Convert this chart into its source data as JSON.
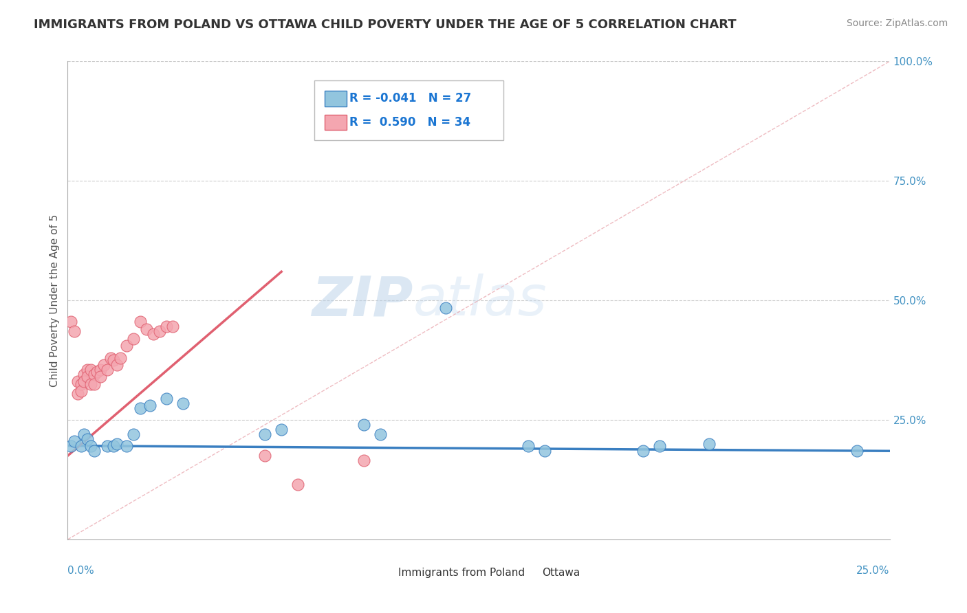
{
  "title": "IMMIGRANTS FROM POLAND VS OTTAWA CHILD POVERTY UNDER THE AGE OF 5 CORRELATION CHART",
  "source": "Source: ZipAtlas.com",
  "ylabel": "Child Poverty Under the Age of 5",
  "xlim": [
    0,
    0.25
  ],
  "ylim": [
    0,
    1.0
  ],
  "legend1_R": "-0.041",
  "legend1_N": "27",
  "legend2_R": "0.590",
  "legend2_N": "34",
  "watermark_zip": "ZIP",
  "watermark_atlas": "atlas",
  "blue_color": "#92C5DE",
  "pink_color": "#F4A6B0",
  "blue_line_color": "#3a7fc1",
  "pink_line_color": "#E06070",
  "blue_scatter": [
    [
      0.001,
      0.195
    ],
    [
      0.002,
      0.205
    ],
    [
      0.004,
      0.195
    ],
    [
      0.005,
      0.22
    ],
    [
      0.006,
      0.21
    ],
    [
      0.007,
      0.195
    ],
    [
      0.008,
      0.185
    ],
    [
      0.012,
      0.195
    ],
    [
      0.014,
      0.195
    ],
    [
      0.015,
      0.2
    ],
    [
      0.018,
      0.195
    ],
    [
      0.02,
      0.22
    ],
    [
      0.022,
      0.275
    ],
    [
      0.025,
      0.28
    ],
    [
      0.03,
      0.295
    ],
    [
      0.035,
      0.285
    ],
    [
      0.06,
      0.22
    ],
    [
      0.065,
      0.23
    ],
    [
      0.09,
      0.24
    ],
    [
      0.095,
      0.22
    ],
    [
      0.115,
      0.485
    ],
    [
      0.14,
      0.195
    ],
    [
      0.145,
      0.185
    ],
    [
      0.175,
      0.185
    ],
    [
      0.18,
      0.195
    ],
    [
      0.195,
      0.2
    ],
    [
      0.24,
      0.185
    ]
  ],
  "pink_scatter": [
    [
      0.001,
      0.455
    ],
    [
      0.002,
      0.435
    ],
    [
      0.003,
      0.33
    ],
    [
      0.003,
      0.305
    ],
    [
      0.004,
      0.325
    ],
    [
      0.004,
      0.31
    ],
    [
      0.005,
      0.345
    ],
    [
      0.005,
      0.33
    ],
    [
      0.006,
      0.355
    ],
    [
      0.006,
      0.34
    ],
    [
      0.007,
      0.355
    ],
    [
      0.007,
      0.325
    ],
    [
      0.008,
      0.345
    ],
    [
      0.008,
      0.325
    ],
    [
      0.009,
      0.35
    ],
    [
      0.01,
      0.355
    ],
    [
      0.01,
      0.34
    ],
    [
      0.011,
      0.365
    ],
    [
      0.012,
      0.355
    ],
    [
      0.013,
      0.38
    ],
    [
      0.014,
      0.375
    ],
    [
      0.015,
      0.365
    ],
    [
      0.016,
      0.38
    ],
    [
      0.018,
      0.405
    ],
    [
      0.02,
      0.42
    ],
    [
      0.022,
      0.455
    ],
    [
      0.024,
      0.44
    ],
    [
      0.026,
      0.43
    ],
    [
      0.028,
      0.435
    ],
    [
      0.03,
      0.445
    ],
    [
      0.032,
      0.445
    ],
    [
      0.06,
      0.175
    ],
    [
      0.07,
      0.115
    ],
    [
      0.09,
      0.165
    ]
  ],
  "grid_color": "#CCCCCC",
  "background_color": "#FFFFFF",
  "title_color": "#333333",
  "axis_label_color": "#4393C3",
  "ref_line_color": "#E8A0A8"
}
